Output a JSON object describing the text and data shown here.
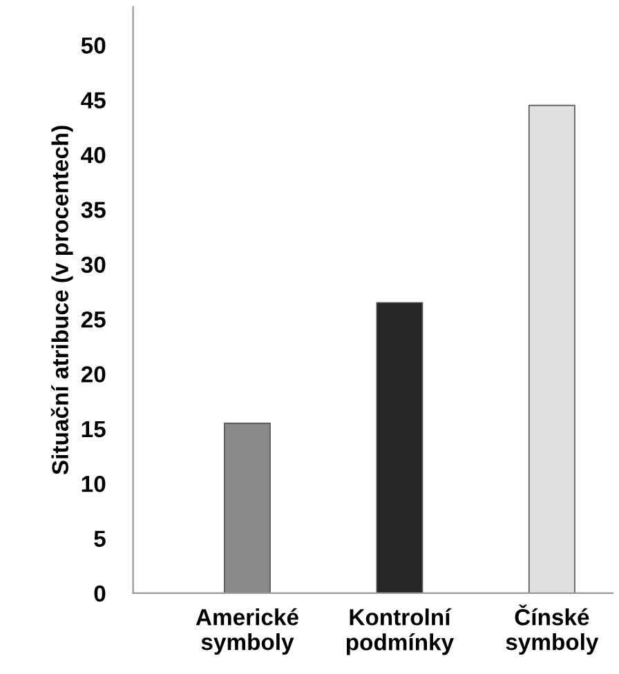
{
  "chart_data": {
    "type": "bar",
    "ylabel": "Situační atribuce (v procentech)",
    "categories": [
      "Americké\nsymboly",
      "Kontrolní\npodmínky",
      "Čínské\nsymboly"
    ],
    "values": [
      15.5,
      26.5,
      44.5
    ],
    "colors": [
      "#8a8a8a",
      "#262626",
      "#e0e0e0"
    ],
    "ylim": [
      0,
      53.5
    ],
    "yticks": [
      0,
      5,
      10,
      15,
      20,
      25,
      30,
      35,
      40,
      45,
      50
    ],
    "grid": false
  }
}
